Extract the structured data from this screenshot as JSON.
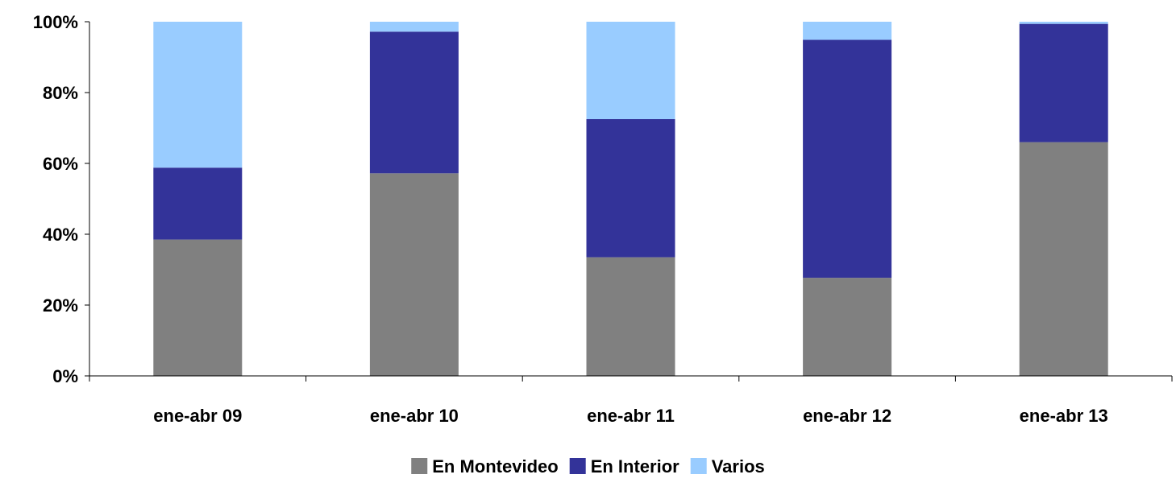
{
  "chart_data": {
    "type": "bar",
    "stacked": true,
    "title": "",
    "xlabel": "",
    "ylabel": "",
    "ylim": [
      0,
      100
    ],
    "yticks": [
      0,
      20,
      40,
      60,
      80,
      100
    ],
    "ytick_labels": [
      "0%",
      "20%",
      "40%",
      "60%",
      "80%",
      "100%"
    ],
    "grid": false,
    "legend_position": "bottom",
    "categories": [
      "ene-abr 09",
      "ene-abr 10",
      "ene-abr 11",
      "ene-abr 12",
      "ene-abr 13"
    ],
    "series": [
      {
        "name": "En Montevideo",
        "color": "#808080",
        "values": [
          38.5,
          57.2,
          33.5,
          27.7,
          66.0
        ]
      },
      {
        "name": "En Interior",
        "color": "#333399",
        "values": [
          20.3,
          40.0,
          39.0,
          67.2,
          33.4
        ]
      },
      {
        "name": "Varios",
        "color": "#99CCFF",
        "values": [
          41.2,
          2.8,
          27.5,
          5.1,
          0.6
        ]
      }
    ]
  }
}
